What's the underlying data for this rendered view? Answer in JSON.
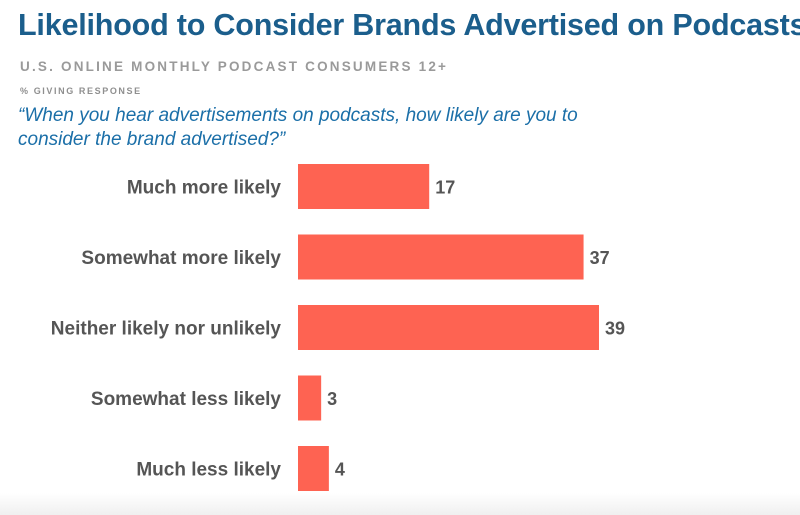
{
  "header": {
    "title": "Likelihood to Consider Brands Advertised on Podcasts",
    "subtitle": "U.S. ONLINE MONTHLY PODCAST CONSUMERS 12+",
    "note": "% GIVING RESPONSE",
    "question": "“When you hear advertisements on podcasts, how likely are you to consider the brand advertised?”"
  },
  "colors": {
    "bar": "#fe6352",
    "title": "#1b5e8c",
    "question": "#1b6fa8",
    "label": "#555555"
  },
  "chart_data": {
    "type": "bar",
    "orientation": "horizontal",
    "title": "Likelihood to Consider Brands Advertised on Podcasts",
    "xlabel": "",
    "ylabel": "",
    "xlim": [
      0,
      39
    ],
    "grid": false,
    "categories": [
      "Much more likely",
      "Somewhat more likely",
      "Neither likely nor unlikely",
      "Somewhat less likely",
      "Much less likely"
    ],
    "values": [
      17,
      37,
      39,
      3,
      4
    ]
  }
}
